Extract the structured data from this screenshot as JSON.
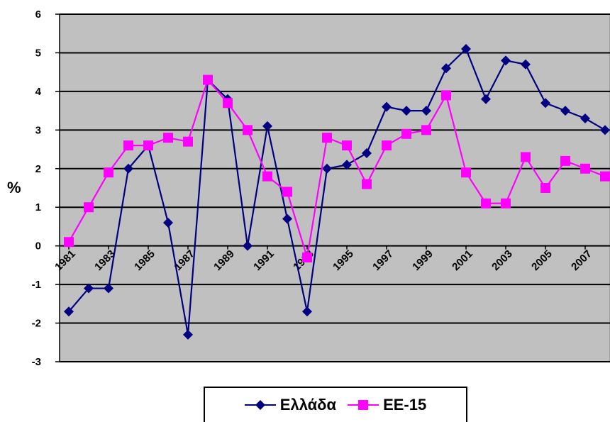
{
  "chart_data": {
    "type": "line",
    "title": "",
    "xlabel": "",
    "ylabel": "%",
    "ylim": [
      -3,
      6
    ],
    "yticks": [
      -3,
      -2,
      -1,
      0,
      1,
      2,
      3,
      4,
      5,
      6
    ],
    "x": [
      1981,
      1982,
      1983,
      1984,
      1985,
      1986,
      1987,
      1988,
      1989,
      1990,
      1991,
      1992,
      1993,
      1994,
      1995,
      1996,
      1997,
      1998,
      1999,
      2000,
      2001,
      2002,
      2003,
      2004,
      2005,
      2006,
      2007,
      2008
    ],
    "xtick_labels": [
      "1981",
      "1983",
      "1985",
      "1987",
      "1989",
      "1991",
      "1993",
      "1995",
      "1997",
      "1999",
      "2001",
      "2003",
      "2005",
      "2007"
    ],
    "grid": true,
    "legend_position": "bottom",
    "series": [
      {
        "name": "Ελλάδα",
        "color": "#000080",
        "marker": "diamond",
        "values": [
          -1.7,
          -1.1,
          -1.1,
          2.0,
          2.6,
          0.6,
          -2.3,
          4.3,
          3.8,
          0.0,
          3.1,
          0.7,
          -1.7,
          2.0,
          2.1,
          2.4,
          3.6,
          3.5,
          3.5,
          4.6,
          5.1,
          3.8,
          4.8,
          4.7,
          3.7,
          3.5,
          3.3,
          3.0
        ]
      },
      {
        "name": "ΕΕ-15",
        "color": "#FF00FF",
        "marker": "square",
        "values": [
          0.1,
          1.0,
          1.9,
          2.6,
          2.6,
          2.8,
          2.7,
          4.3,
          3.7,
          3.0,
          1.8,
          1.4,
          -0.3,
          2.8,
          2.6,
          1.6,
          2.6,
          2.9,
          3.0,
          3.9,
          1.9,
          1.1,
          1.1,
          2.3,
          1.5,
          2.2,
          2.0,
          1.8
        ]
      }
    ],
    "plot_background": "#C0C0C0"
  }
}
